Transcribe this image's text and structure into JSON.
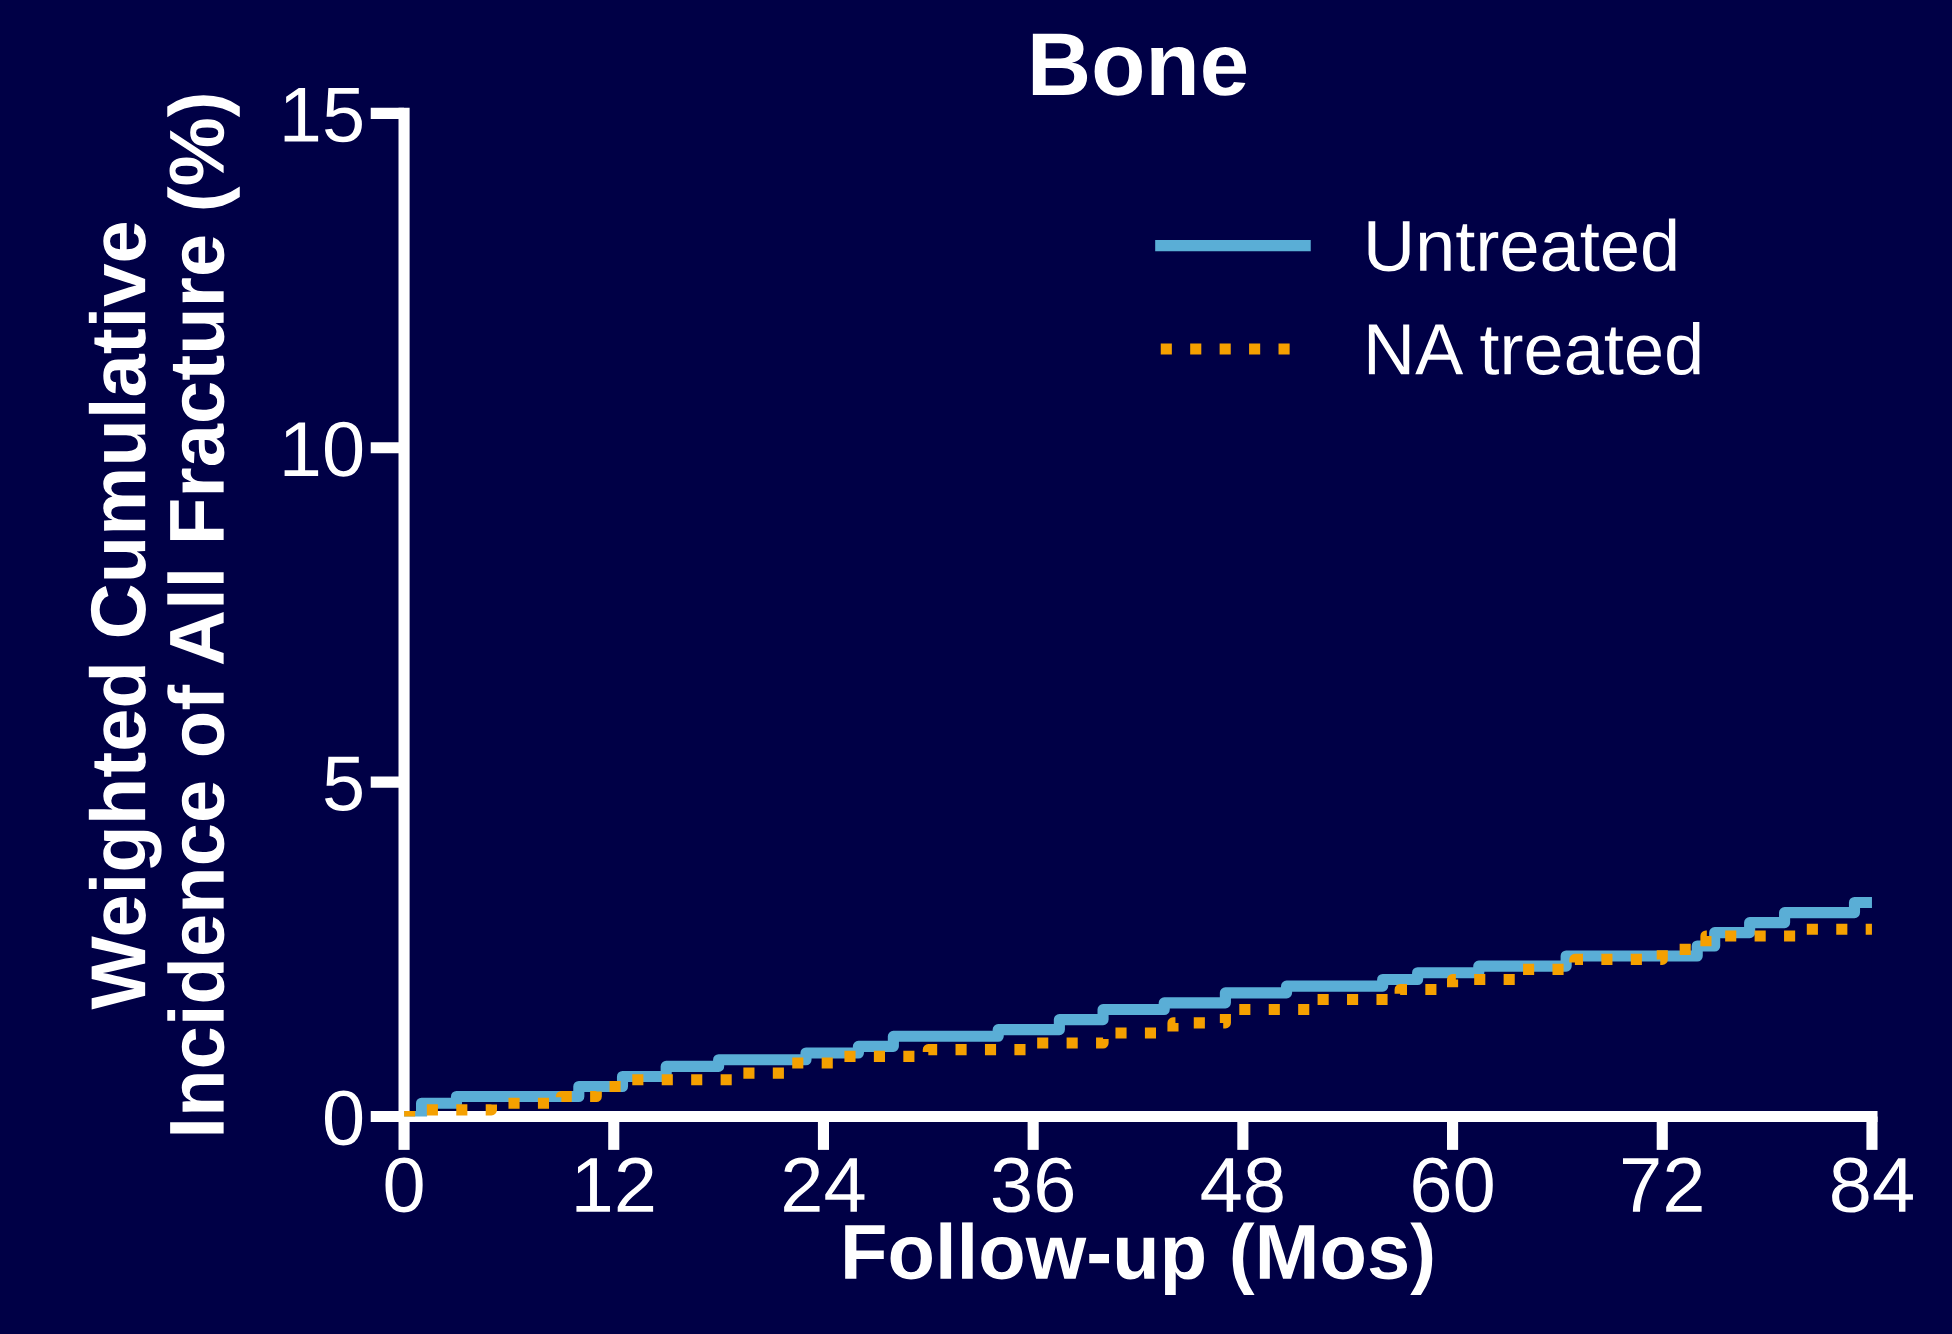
{
  "chart_data": {
    "type": "step",
    "title": "Bone",
    "xlabel": "Follow-up (Mos)",
    "ylabel": "Weighted Cumulative\nIncidence of All Fracture (%)",
    "xlim": [
      0,
      84
    ],
    "xticks": [
      0,
      12,
      24,
      36,
      48,
      60,
      72,
      84
    ],
    "ylim": [
      0,
      15
    ],
    "yticks": [
      0,
      5,
      10,
      15
    ],
    "grid": false,
    "legend": "top right",
    "series": [
      {
        "name": "Untreated",
        "color": "#5aaed6",
        "line_style": "solid",
        "x": [
          0,
          1,
          3,
          10,
          12.5,
          15,
          18,
          23,
          26,
          28,
          34,
          37.5,
          40,
          43.5,
          47,
          50.5,
          56,
          58,
          61.5,
          66.5,
          74,
          75,
          77,
          79,
          83,
          84
        ],
        "values": [
          0,
          0.2,
          0.3,
          0.45,
          0.6,
          0.75,
          0.85,
          0.95,
          1.05,
          1.2,
          1.3,
          1.45,
          1.6,
          1.7,
          1.85,
          1.95,
          2.05,
          2.15,
          2.25,
          2.4,
          2.55,
          2.75,
          2.9,
          3.05,
          3.2,
          3.2
        ]
      },
      {
        "name": "NA treated",
        "color": "#f5a000",
        "line_style": "dotted",
        "x": [
          0,
          1,
          5,
          9,
          11,
          13,
          19,
          22,
          25,
          30,
          36,
          40,
          44,
          47,
          52,
          57,
          60,
          64,
          67,
          72,
          74.5,
          80,
          84
        ],
        "values": [
          0,
          0.1,
          0.2,
          0.3,
          0.45,
          0.55,
          0.65,
          0.8,
          0.9,
          1.0,
          1.1,
          1.25,
          1.4,
          1.6,
          1.75,
          1.9,
          2.05,
          2.2,
          2.35,
          2.5,
          2.7,
          2.8,
          2.8
        ]
      }
    ]
  }
}
